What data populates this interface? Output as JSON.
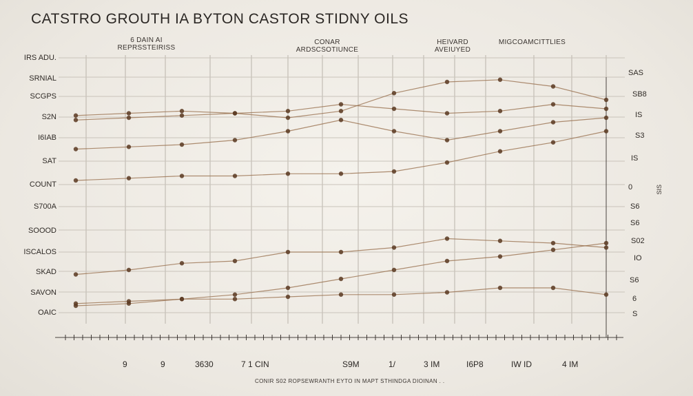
{
  "chart_data": {
    "type": "line",
    "title": "CATSTRO GROUTH IA BYTON CASTOR STIDNY OILS",
    "column_headers": [
      {
        "line1": "6 DAIN AI",
        "line2": "REPRSSTEIRISS"
      },
      {
        "line1": "CONAR",
        "line2": "ARDSCSOTIUNCE"
      },
      {
        "line1": "HEIVARD",
        "line2": "AVEIUYED"
      },
      {
        "line1": "",
        "line2": "MIGCOAMCITTLIES"
      }
    ],
    "y_tick_labels": [
      "IRS ADU.",
      "SRNIAL",
      "SCGPS",
      "S2N",
      "I6IAB",
      "SAT",
      "COUNT",
      "S700A",
      "SOOOD",
      "ISCALOS",
      "SKAD",
      "SAVON",
      "OAIC"
    ],
    "right_tick_labels": [
      "SAS",
      "SB8",
      "IS",
      "S3",
      "IS",
      "0",
      "S6",
      "S6",
      "S02",
      "IO",
      "S6",
      "6",
      "S"
    ],
    "right_axis_label": "SIS",
    "x_tick_labels": [
      "9",
      "9",
      "3630",
      "7 1 CIN",
      "S9M",
      "1/",
      "3 IM",
      "I6P8",
      "IW ID",
      "4 IM"
    ],
    "caption": "CONIR S02 ROPSEWRANTH EYTO IN MAPT STHINDGA DIOINAN . .",
    "x": [
      0,
      1,
      2,
      3,
      4,
      5,
      6,
      7,
      8,
      9,
      10
    ],
    "ylim": [
      0,
      12
    ],
    "series": [
      {
        "values": [
          9.3,
          9.4,
          9.5,
          9.4,
          9.2,
          9.5,
          10.3,
          10.8,
          10.9,
          10.6,
          10.0
        ]
      },
      {
        "values": [
          9.1,
          9.2,
          9.3,
          9.4,
          9.5,
          9.8,
          9.6,
          9.4,
          9.5,
          9.8,
          9.6
        ]
      },
      {
        "values": [
          7.8,
          7.9,
          8.0,
          8.2,
          8.6,
          9.1,
          8.6,
          8.2,
          8.6,
          9.0,
          9.2
        ]
      },
      {
        "values": [
          6.4,
          6.5,
          6.6,
          6.6,
          6.7,
          6.7,
          6.8,
          7.2,
          7.7,
          8.1,
          8.6
        ]
      },
      {
        "values": [
          2.2,
          2.4,
          2.7,
          2.8,
          3.2,
          3.2,
          3.4,
          3.8,
          3.7,
          3.6,
          3.4
        ]
      },
      {
        "values": [
          0.8,
          0.9,
          1.1,
          1.3,
          1.6,
          2.0,
          2.4,
          2.8,
          3.0,
          3.3,
          3.6
        ]
      },
      {
        "values": [
          0.9,
          1.0,
          1.1,
          1.1,
          1.2,
          1.3,
          1.3,
          1.4,
          1.6,
          1.6,
          1.3
        ]
      }
    ],
    "point_color": "#5a3a22",
    "line_color": "#9a7250",
    "grid": true
  }
}
